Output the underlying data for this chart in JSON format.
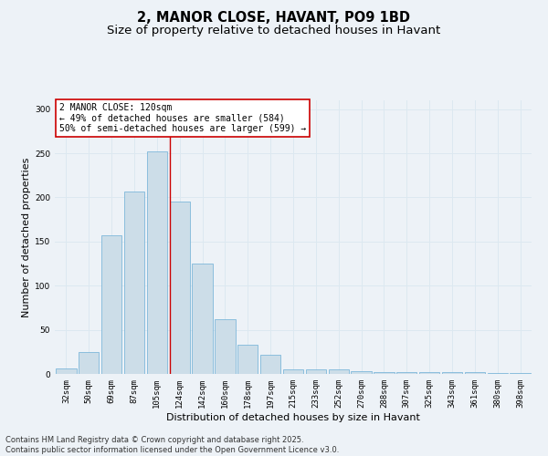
{
  "title": "2, MANOR CLOSE, HAVANT, PO9 1BD",
  "subtitle": "Size of property relative to detached houses in Havant",
  "xlabel": "Distribution of detached houses by size in Havant",
  "ylabel": "Number of detached properties",
  "categories": [
    "32sqm",
    "50sqm",
    "69sqm",
    "87sqm",
    "105sqm",
    "124sqm",
    "142sqm",
    "160sqm",
    "178sqm",
    "197sqm",
    "215sqm",
    "233sqm",
    "252sqm",
    "270sqm",
    "288sqm",
    "307sqm",
    "325sqm",
    "343sqm",
    "361sqm",
    "380sqm",
    "398sqm"
  ],
  "bar_values": [
    6,
    25,
    157,
    207,
    252,
    195,
    125,
    62,
    33,
    22,
    5,
    5,
    5,
    3,
    2,
    2,
    2,
    2,
    2,
    1,
    1
  ],
  "property_label": "2 MANOR CLOSE: 120sqm",
  "annotation_line1": "← 49% of detached houses are smaller (584)",
  "annotation_line2": "50% of semi-detached houses are larger (599) →",
  "bar_color": "#ccdde8",
  "bar_edge_color": "#6baed6",
  "grid_color": "#dce8f0",
  "background_color": "#edf2f7",
  "vline_color": "#cc0000",
  "vline_x_index": 4.55,
  "annotation_box_edge_color": "#cc0000",
  "ylim": [
    0,
    310
  ],
  "yticks": [
    0,
    50,
    100,
    150,
    200,
    250,
    300
  ],
  "footer_line1": "Contains HM Land Registry data © Crown copyright and database right 2025.",
  "footer_line2": "Contains public sector information licensed under the Open Government Licence v3.0.",
  "title_fontsize": 10.5,
  "subtitle_fontsize": 9.5,
  "axis_label_fontsize": 8,
  "tick_fontsize": 6.5,
  "annotation_fontsize": 7,
  "footer_fontsize": 6
}
